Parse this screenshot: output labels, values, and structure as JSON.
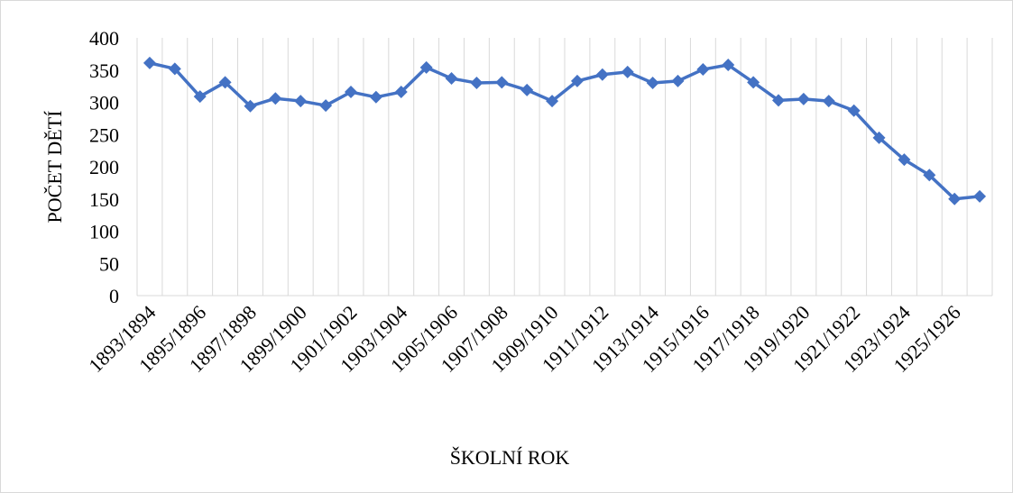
{
  "chart_data": {
    "type": "line",
    "x_label": "ŠKOLNÍ ROK",
    "y_label": "POČET DĚTÍ",
    "categories": [
      "1893/1894",
      null,
      "1895/1896",
      null,
      "1897/1898",
      null,
      "1899/1900",
      null,
      "1901/1902",
      null,
      "1903/1904",
      null,
      "1905/1906",
      null,
      "1907/1908",
      null,
      "1909/1910",
      null,
      "1911/1912",
      null,
      "1913/1914",
      null,
      "1915/1916",
      null,
      "1917/1918",
      null,
      "1919/1920",
      null,
      "1921/1922",
      null,
      "1923/1924",
      null,
      "1925/1926",
      null
    ],
    "values": [
      361,
      352,
      309,
      331,
      294,
      306,
      302,
      295,
      316,
      308,
      316,
      354,
      337,
      330,
      331,
      319,
      302,
      333,
      343,
      347,
      330,
      333,
      351,
      358,
      331,
      303,
      305,
      302,
      287,
      245,
      211,
      187,
      150,
      154
    ],
    "color": "#4472c4",
    "ylim": [
      0,
      400
    ],
    "yticks": [
      0,
      50,
      100,
      150,
      200,
      250,
      300,
      350,
      400
    ]
  }
}
